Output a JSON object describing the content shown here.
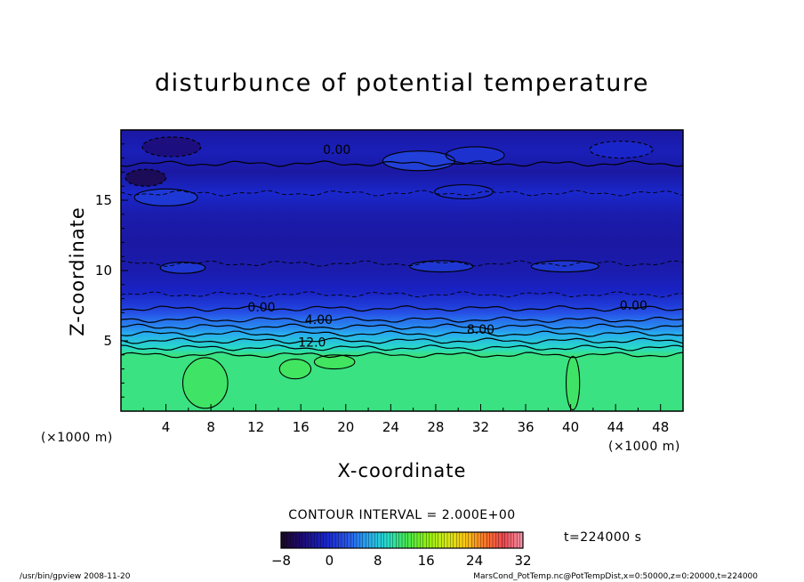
{
  "chart_data": {
    "type": "heatmap",
    "title": "disturbunce of potential temperature",
    "xlabel": "X-coordinate",
    "ylabel": "Z-coordinate",
    "x_unit": "(×1000 m)",
    "y_unit": "(×1000 m)",
    "xlim": [
      0,
      50
    ],
    "ylim": [
      0,
      20
    ],
    "x_ticks": [
      "4",
      "8",
      "12",
      "16",
      "20",
      "24",
      "28",
      "32",
      "36",
      "40",
      "44",
      "48"
    ],
    "y_ticks": [
      "5",
      "10",
      "15"
    ],
    "contour_interval_text": "CONTOUR INTERVAL = 2.000E+00",
    "time_text": "t=224000 s",
    "contour_labels": [
      "0.00",
      "0.00",
      "4.00",
      "12.0",
      "8.00",
      "0.00"
    ],
    "colorbar": {
      "min": -8,
      "max": 32,
      "tick_labels": [
        "−8",
        "0",
        "8",
        "16",
        "24",
        "32"
      ]
    },
    "z_profile": [
      {
        "z": 0.0,
        "value": 11.5
      },
      {
        "z": 4.0,
        "value": 11.5
      },
      {
        "z": 4.5,
        "value": 9.5
      },
      {
        "z": 5.0,
        "value": 8.0
      },
      {
        "z": 5.5,
        "value": 6.5
      },
      {
        "z": 6.0,
        "value": 5.0
      },
      {
        "z": 6.5,
        "value": 4.0
      },
      {
        "z": 7.0,
        "value": 2.5
      },
      {
        "z": 7.5,
        "value": 1.0
      },
      {
        "z": 8.5,
        "value": -1.0
      },
      {
        "z": 10.0,
        "value": -2.0
      },
      {
        "z": 12.0,
        "value": -2.5
      },
      {
        "z": 14.0,
        "value": -2.0
      },
      {
        "z": 15.5,
        "value": -0.5
      },
      {
        "z": 17.0,
        "value": -2.5
      },
      {
        "z": 18.5,
        "value": -1.5
      },
      {
        "z": 20.0,
        "value": -2.5
      }
    ]
  },
  "footer": {
    "left": "/usr/bin/gpview   2008-11-20",
    "right": "MarsCond_PotTemp.nc@PotTempDist,x=0:50000,z=0:20000,t=224000"
  },
  "colors": {
    "plot_low": "#1e3ec8",
    "plot_high": "#88f015"
  }
}
